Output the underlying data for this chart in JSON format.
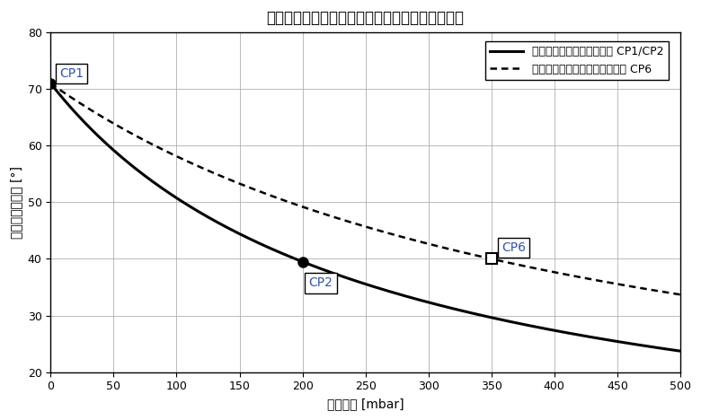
{
  "title": "標準校正の位相測定カーブとプロセス校正の作用",
  "xlabel": "酸素分圧 [mbar]",
  "ylabel": "発光位相シフト [°]",
  "xlim": [
    0,
    500
  ],
  "ylim": [
    20,
    80
  ],
  "xticks": [
    0,
    50,
    100,
    150,
    200,
    250,
    300,
    350,
    400,
    450,
    500
  ],
  "yticks": [
    20,
    30,
    40,
    50,
    60,
    70,
    80
  ],
  "solid_label": "標準校正の位相測定カーブ CP1/CP2",
  "dashed_label": "プロセス校正の位相測定カーブ CP6",
  "cp1_x": 0,
  "cp1_y": 71.0,
  "cp2_x": 200,
  "cp2_y": 39.5,
  "cp6_x": 350,
  "cp6_y": 40.0,
  "solid_end_y": 27.5,
  "background_color": "#ffffff",
  "line_color": "#000000",
  "grid_color": "#b0b0b0",
  "label_color_cp": "#3355aa",
  "title_fontsize": 12,
  "axis_label_fontsize": 10,
  "tick_fontsize": 9,
  "legend_fontsize": 9
}
